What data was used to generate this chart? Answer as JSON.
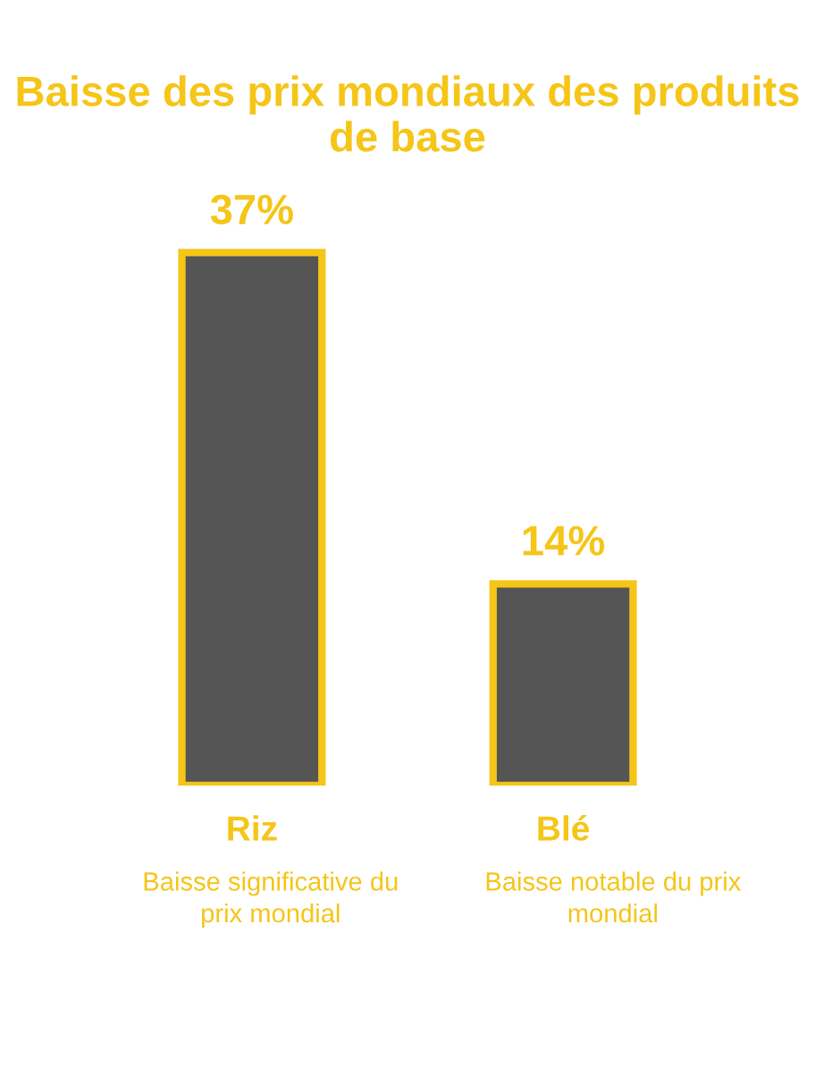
{
  "chart_data": {
    "type": "bar",
    "title": "Baisse des prix mondiaux des produits de base",
    "categories": [
      "Riz",
      "Blé"
    ],
    "values": [
      37,
      14
    ],
    "value_labels": [
      "37%",
      "14%"
    ],
    "color": "#555555",
    "annotations": [
      "Baisse significative du prix mondial",
      "Baisse notable du prix mondial"
    ]
  }
}
